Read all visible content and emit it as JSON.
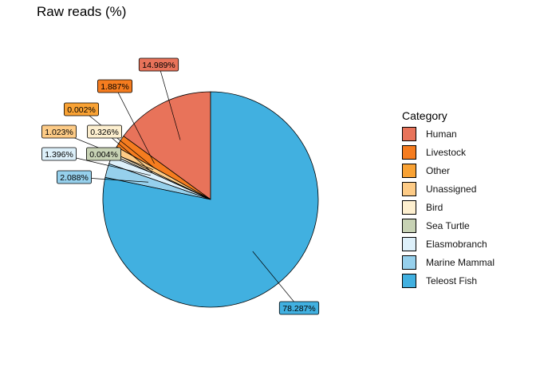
{
  "chart_data": {
    "type": "pie",
    "title": "Raw reads (%)",
    "legend_title": "Category",
    "legend_position": "right",
    "slices": [
      {
        "name": "Human",
        "value": 14.989,
        "label": "14.989%",
        "color": "#E8735A"
      },
      {
        "name": "Livestock",
        "value": 1.887,
        "label": "1.887%",
        "color": "#F57C1F"
      },
      {
        "name": "Other",
        "value": 0.002,
        "label": "0.002%",
        "color": "#F9A234"
      },
      {
        "name": "Unassigned",
        "value": 1.023,
        "label": "1.023%",
        "color": "#FDCB86"
      },
      {
        "name": "Bird",
        "value": 0.326,
        "label": "0.326%",
        "color": "#FDEFCF"
      },
      {
        "name": "Sea Turtle",
        "value": 0.004,
        "label": "0.004%",
        "color": "#C7D2B4"
      },
      {
        "name": "Elasmobranch",
        "value": 1.396,
        "label": "1.396%",
        "color": "#DDF0FA"
      },
      {
        "name": "Marine Mammal",
        "value": 2.088,
        "label": "2.088%",
        "color": "#96D0EC"
      },
      {
        "name": "Teleost Fish",
        "value": 78.287,
        "label": "78.287%",
        "color": "#41B0E0"
      }
    ],
    "label_order_shown": [
      "78.287%",
      "2.088%",
      "1.396%",
      "0.004%",
      "1.023%",
      "0.326%",
      "0.002%",
      "1.887%",
      "14.989%"
    ]
  }
}
